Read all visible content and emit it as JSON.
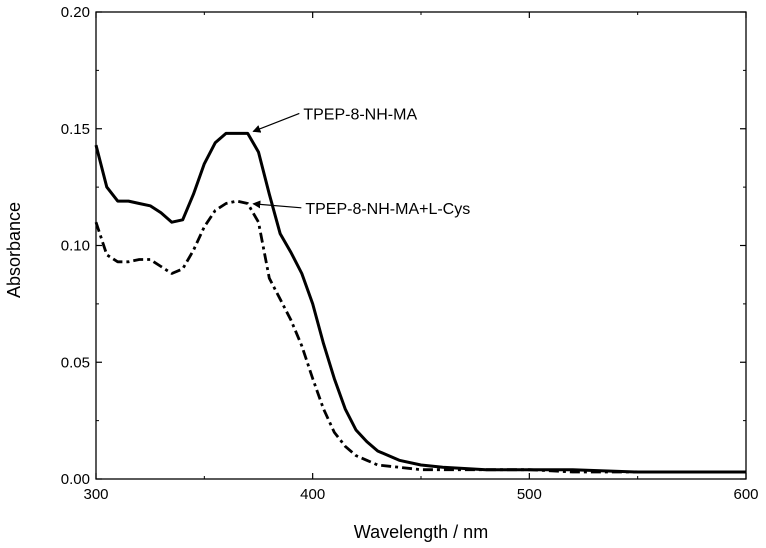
{
  "chart_data": {
    "type": "line",
    "xlabel": "Wavelength / nm",
    "ylabel": "Absorbance",
    "xlim": [
      300,
      600
    ],
    "ylim": [
      0.0,
      0.2
    ],
    "xticks": [
      "300",
      "400",
      "500",
      "600"
    ],
    "yticks": [
      "0.00",
      "0.05",
      "0.10",
      "0.15",
      "0.20"
    ],
    "grid": false,
    "series": [
      {
        "name": "TPEP-8-NH-MA",
        "style": "solid",
        "x": [
          300,
          305,
          310,
          315,
          320,
          325,
          330,
          335,
          340,
          345,
          350,
          355,
          360,
          365,
          370,
          375,
          380,
          385,
          390,
          395,
          400,
          405,
          410,
          415,
          420,
          425,
          430,
          440,
          450,
          460,
          480,
          500,
          520,
          550,
          600
        ],
        "y": [
          0.143,
          0.125,
          0.119,
          0.119,
          0.118,
          0.117,
          0.114,
          0.11,
          0.111,
          0.122,
          0.135,
          0.144,
          0.148,
          0.148,
          0.148,
          0.14,
          0.122,
          0.105,
          0.097,
          0.088,
          0.075,
          0.058,
          0.043,
          0.03,
          0.021,
          0.016,
          0.012,
          0.008,
          0.006,
          0.005,
          0.004,
          0.004,
          0.004,
          0.003,
          0.003
        ]
      },
      {
        "name": "TPEP-8-NH-MA+L-Cys",
        "style": "dash-dot",
        "x": [
          300,
          305,
          310,
          315,
          320,
          325,
          330,
          335,
          340,
          345,
          350,
          355,
          360,
          365,
          370,
          375,
          380,
          385,
          390,
          395,
          400,
          405,
          410,
          415,
          420,
          425,
          430,
          440,
          450,
          460,
          480,
          500,
          520,
          550,
          600
        ],
        "y": [
          0.11,
          0.096,
          0.093,
          0.093,
          0.094,
          0.094,
          0.091,
          0.088,
          0.09,
          0.098,
          0.108,
          0.115,
          0.118,
          0.119,
          0.118,
          0.11,
          0.086,
          0.077,
          0.068,
          0.057,
          0.043,
          0.03,
          0.02,
          0.014,
          0.01,
          0.008,
          0.006,
          0.005,
          0.004,
          0.004,
          0.004,
          0.004,
          0.003,
          0.003,
          0.003
        ]
      }
    ],
    "annotations": [
      {
        "text": "TPEP-8-NH-MA",
        "x": 368,
        "y": 0.148,
        "series": 0
      },
      {
        "text": "TPEP-8-NH-MA+L-Cys",
        "x": 368,
        "y": 0.117,
        "series": 1
      }
    ]
  }
}
